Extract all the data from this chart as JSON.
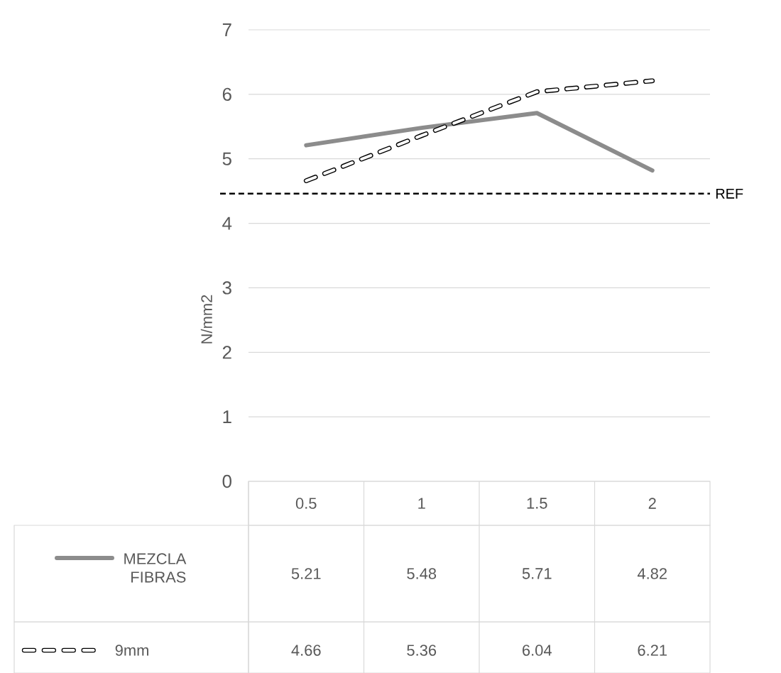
{
  "chart_data": {
    "type": "line",
    "ylabel": "N/mm2",
    "categories": [
      "0.5",
      "1",
      "1.5",
      "2"
    ],
    "series": [
      {
        "name": "MEZCLA FIBRAS",
        "color": "#8c8c8c",
        "line_style": "solid",
        "values": [
          5.21,
          5.48,
          5.71,
          4.82
        ]
      },
      {
        "name": "9mm",
        "color": "#000000",
        "line_style": "dashed",
        "values": [
          4.66,
          5.36,
          6.04,
          6.21
        ]
      }
    ],
    "ylim": [
      0,
      7
    ],
    "yticks": [
      0,
      1,
      2,
      3,
      4,
      5,
      6,
      7
    ],
    "grid": "y",
    "ref_lines": [
      {
        "axis": "y",
        "value": 4.46,
        "label": "REF",
        "color": "#000000",
        "line_style": "dashed"
      }
    ],
    "data_labels": true,
    "legend": "bottom"
  }
}
